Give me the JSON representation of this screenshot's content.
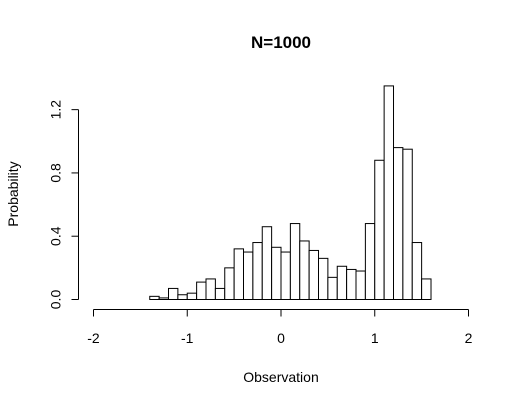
{
  "chart_data": {
    "type": "bar",
    "title": "N=1000",
    "xlabel": "Observation",
    "ylabel": "Probability",
    "xlim": [
      -2,
      2
    ],
    "ylim": [
      0,
      1.4
    ],
    "xticks": [
      "-2",
      "-1",
      "0",
      "1",
      "2"
    ],
    "yticks": [
      "0.0",
      "0.4",
      "0.8",
      "1.2"
    ],
    "bin_width": 0.1,
    "bins": [
      {
        "x0": -1.4,
        "x1": -1.3,
        "value": 0.02
      },
      {
        "x0": -1.3,
        "x1": -1.2,
        "value": 0.01
      },
      {
        "x0": -1.2,
        "x1": -1.1,
        "value": 0.07
      },
      {
        "x0": -1.1,
        "x1": -1.0,
        "value": 0.03
      },
      {
        "x0": -1.0,
        "x1": -0.9,
        "value": 0.04
      },
      {
        "x0": -0.9,
        "x1": -0.8,
        "value": 0.11
      },
      {
        "x0": -0.8,
        "x1": -0.7,
        "value": 0.13
      },
      {
        "x0": -0.7,
        "x1": -0.6,
        "value": 0.07
      },
      {
        "x0": -0.6,
        "x1": -0.5,
        "value": 0.2
      },
      {
        "x0": -0.5,
        "x1": -0.4,
        "value": 0.32
      },
      {
        "x0": -0.4,
        "x1": -0.3,
        "value": 0.3
      },
      {
        "x0": -0.3,
        "x1": -0.2,
        "value": 0.36
      },
      {
        "x0": -0.2,
        "x1": -0.1,
        "value": 0.46
      },
      {
        "x0": -0.1,
        "x1": 0.0,
        "value": 0.33
      },
      {
        "x0": 0.0,
        "x1": 0.1,
        "value": 0.3
      },
      {
        "x0": 0.1,
        "x1": 0.2,
        "value": 0.48
      },
      {
        "x0": 0.2,
        "x1": 0.3,
        "value": 0.37
      },
      {
        "x0": 0.3,
        "x1": 0.4,
        "value": 0.31
      },
      {
        "x0": 0.4,
        "x1": 0.5,
        "value": 0.26
      },
      {
        "x0": 0.5,
        "x1": 0.6,
        "value": 0.14
      },
      {
        "x0": 0.6,
        "x1": 0.7,
        "value": 0.21
      },
      {
        "x0": 0.7,
        "x1": 0.8,
        "value": 0.19
      },
      {
        "x0": 0.8,
        "x1": 0.9,
        "value": 0.18
      },
      {
        "x0": 0.9,
        "x1": 1.0,
        "value": 0.48
      },
      {
        "x0": 1.0,
        "x1": 1.1,
        "value": 0.88
      },
      {
        "x0": 1.1,
        "x1": 1.2,
        "value": 1.35
      },
      {
        "x0": 1.2,
        "x1": 1.3,
        "value": 0.96
      },
      {
        "x0": 1.3,
        "x1": 1.4,
        "value": 0.95
      },
      {
        "x0": 1.4,
        "x1": 1.5,
        "value": 0.36
      },
      {
        "x0": 1.5,
        "x1": 1.6,
        "value": 0.13
      }
    ],
    "bar_fill": "#ffffff",
    "bar_stroke": "#000000",
    "grid": false,
    "legend": "none"
  }
}
